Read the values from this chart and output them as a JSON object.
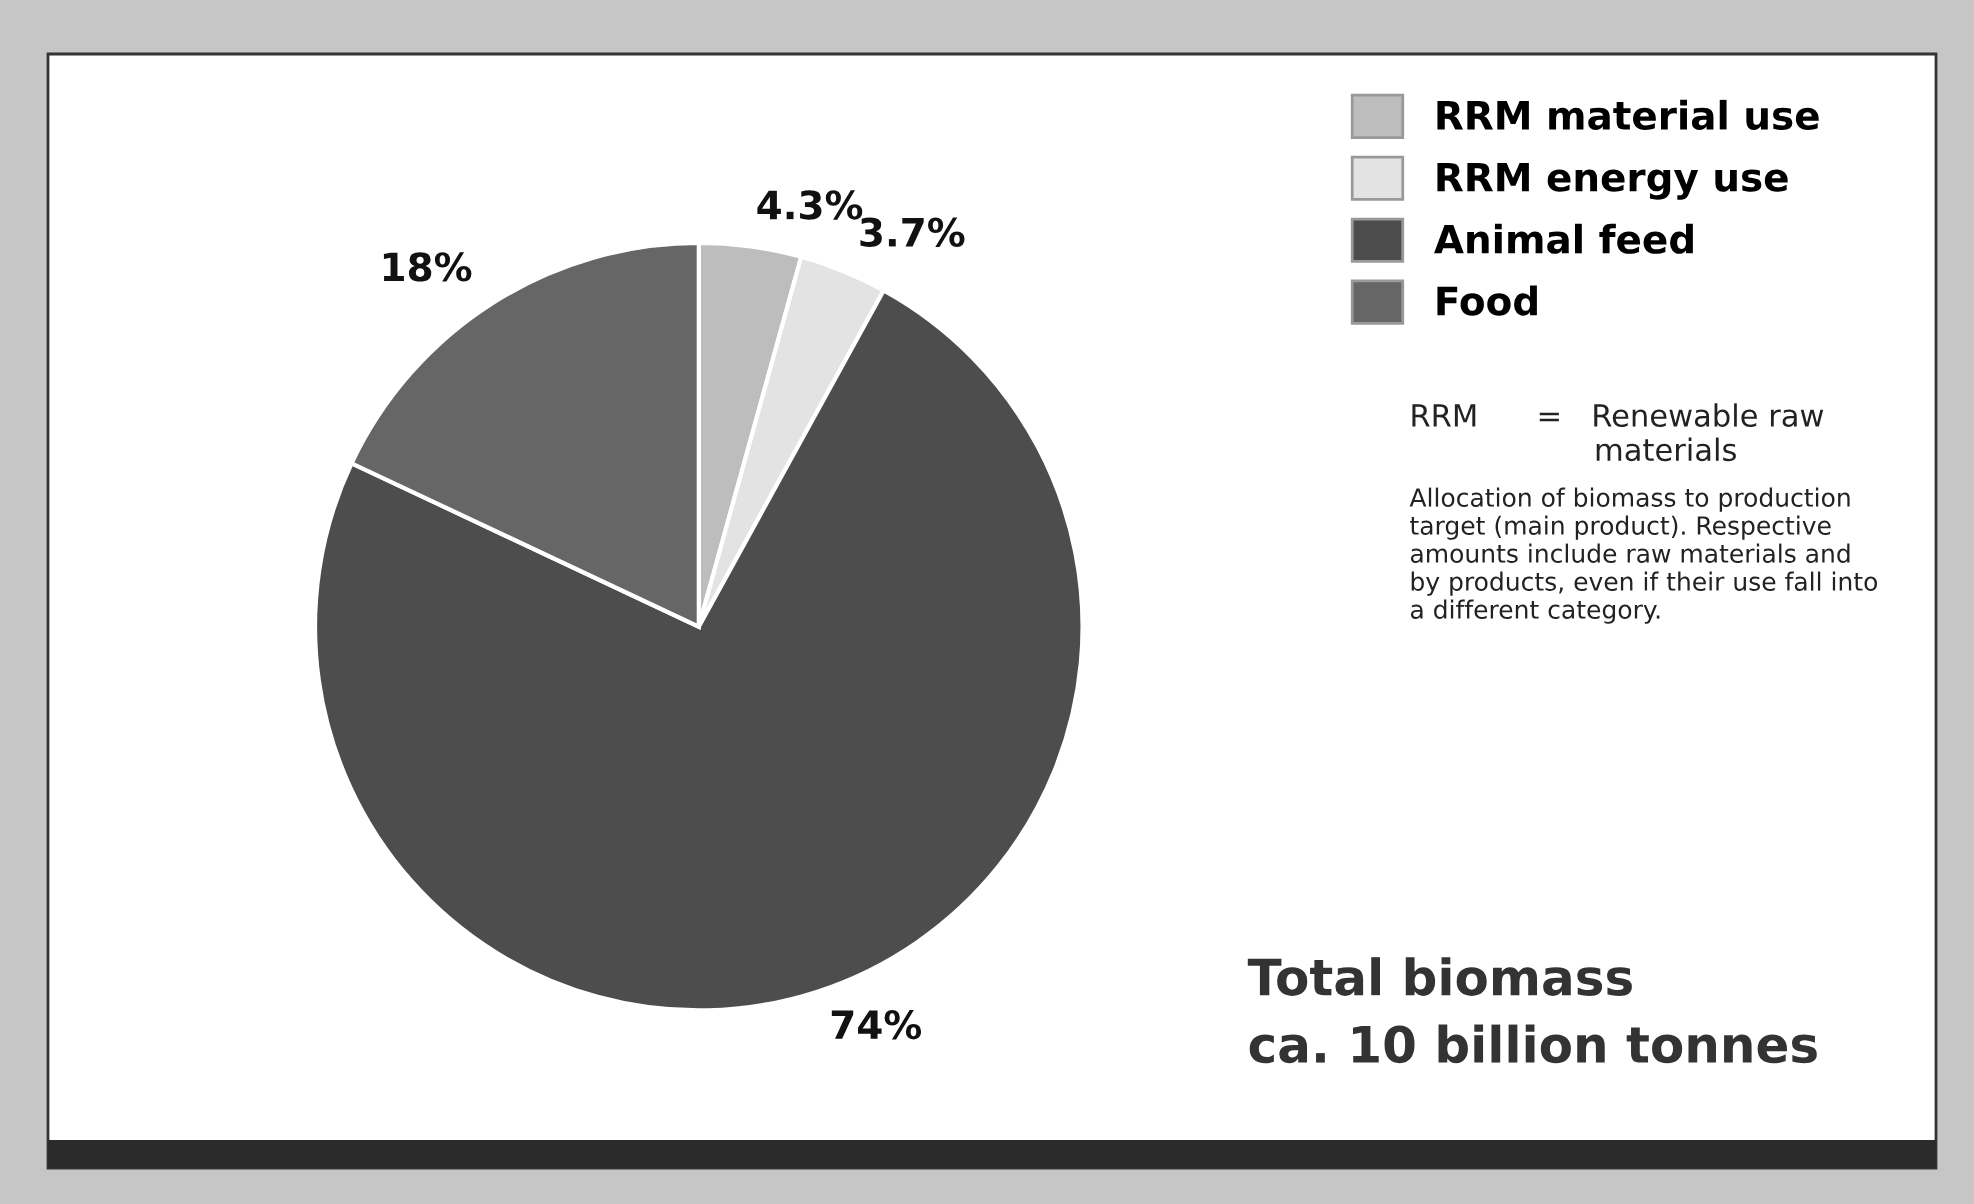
{
  "chart_data": {
    "type": "pie",
    "title": "Total biomass\nca. 10 billion tonnes",
    "categories": [
      "RRM material use",
      "RRM energy use",
      "Animal feed",
      "Food"
    ],
    "values": [
      4.3,
      3.7,
      74,
      18
    ],
    "value_labels": [
      "4.3%",
      "3.7%",
      "74%",
      "18%"
    ],
    "colors": [
      "#bdbdbd",
      "#e3e3e3",
      "#4d4d4d",
      "#666666"
    ],
    "legend": "top right",
    "annotations": [
      "RRM      =   Renewable raw\n                   materials",
      "Allocation of biomass to production\ntarget (main product). Respective\namounts include raw materials and\nby products, even if their use fall into\na different category."
    ]
  }
}
